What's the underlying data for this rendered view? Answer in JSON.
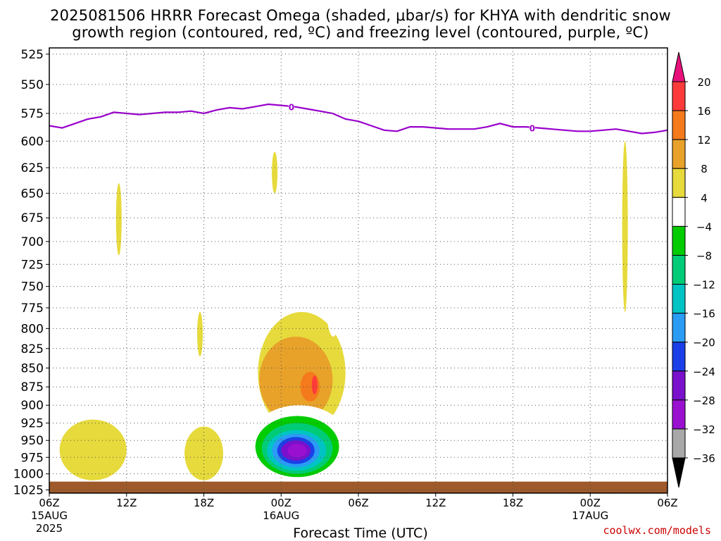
{
  "title": {
    "line1": "2025081506 HRRR Forecast Omega (shaded, μbar/s) for KHYA with dendritic snow",
    "line2": "growth region (contoured, red, ºC) and freezing level (contoured, purple, ºC)"
  },
  "credit": "coolwx.com/models",
  "chart_data": {
    "type": "contour",
    "xlabel": "Forecast Time (UTC)",
    "ylabel": "",
    "x_ticks": [
      "06Z",
      "12Z",
      "18Z",
      "00Z",
      "06Z",
      "12Z",
      "18Z",
      "00Z",
      "06Z"
    ],
    "x_subticks": [
      "15AUG",
      "",
      "",
      "16AUG",
      "",
      "",
      "",
      "17AUG",
      ""
    ],
    "x_year": "2025",
    "x_range_hours": [
      0,
      48
    ],
    "y_ticks": [
      525,
      550,
      575,
      600,
      625,
      650,
      675,
      700,
      725,
      750,
      775,
      800,
      825,
      850,
      875,
      900,
      925,
      950,
      975,
      1000,
      1025
    ],
    "y_range_hPa": [
      520,
      1030
    ],
    "y_scale": "log-pressure",
    "grid": true,
    "colorbar": {
      "labels": [
        "20",
        "16",
        "12",
        "8",
        "4",
        "−4",
        "−8",
        "−12",
        "−16",
        "−20",
        "−24",
        "−28",
        "−32",
        "−36"
      ],
      "bins": [
        {
          "from": 16,
          "to": 20,
          "color": "#ff3a3a"
        },
        {
          "from": 12,
          "to": 16,
          "color": "#f47a1c"
        },
        {
          "from": 8,
          "to": 12,
          "color": "#e8a22a"
        },
        {
          "from": 4,
          "to": 8,
          "color": "#e6da3c"
        },
        {
          "from": -4,
          "to": 4,
          "color": "#ffffff"
        },
        {
          "from": -8,
          "to": -4,
          "color": "#00cc00"
        },
        {
          "from": -12,
          "to": -8,
          "color": "#00cc77"
        },
        {
          "from": -16,
          "to": -12,
          "color": "#00c4c4"
        },
        {
          "from": -20,
          "to": -16,
          "color": "#2a9cf4"
        },
        {
          "from": -24,
          "to": -20,
          "color": "#1a3fe8"
        },
        {
          "from": -28,
          "to": -24,
          "color": "#7a10cc"
        },
        {
          "from": -32,
          "to": -28,
          "color": "#9a10d0"
        },
        {
          "from": -36,
          "to": -32,
          "color": "#a8a8a8"
        }
      ],
      "max_arrow_color": "#e8107a",
      "min_arrow_color": "#000000"
    },
    "series": [
      {
        "name": "freezing level",
        "contour_label": "0",
        "color": "#9900cc",
        "x": [
          0,
          1,
          2,
          3,
          4,
          5,
          6,
          7,
          8,
          9,
          10,
          11,
          12,
          13,
          14,
          15,
          16,
          17,
          18,
          19,
          20,
          21,
          22,
          23,
          24,
          25,
          26,
          27,
          28,
          29,
          30,
          31,
          32,
          33,
          34,
          35,
          36,
          37,
          38,
          39,
          40,
          41,
          42,
          43,
          44,
          45,
          46,
          47,
          48
        ],
        "y": [
          586,
          588,
          584,
          580,
          578,
          574,
          575,
          576,
          575,
          574,
          574,
          573,
          575,
          572,
          570,
          571,
          569,
          567,
          568,
          569,
          571,
          573,
          575,
          580,
          582,
          586,
          590,
          591,
          587,
          587,
          588,
          589,
          589,
          589,
          587,
          584,
          587,
          587,
          588,
          589,
          590,
          591,
          591,
          590,
          589,
          591,
          593,
          592,
          590
        ]
      }
    ],
    "omega_features": [
      {
        "value": 4,
        "x": [
          5.4,
          5.4
        ],
        "p": [
          640,
          715
        ]
      },
      {
        "value": 4,
        "x": [
          11.7,
          11.7
        ],
        "p": [
          780,
          835
        ]
      },
      {
        "value": 4,
        "x": [
          17.5,
          17.5
        ],
        "p": [
          610,
          650
        ]
      },
      {
        "value": 4,
        "x": [
          44.7,
          44.7
        ],
        "p": [
          600,
          780
        ]
      },
      {
        "value": 4,
        "x": [
          0.8,
          6
        ],
        "p": [
          920,
          1010
        ]
      },
      {
        "value": 4,
        "x": [
          10.5,
          13.5
        ],
        "p": [
          930,
          1010
        ]
      },
      {
        "value": 4,
        "x": [
          16.2,
          23
        ],
        "p": [
          780,
          940
        ]
      },
      {
        "value": 8,
        "x": [
          16.3,
          22
        ],
        "p": [
          810,
          925
        ]
      },
      {
        "value": 12,
        "x": [
          19.5,
          21
        ],
        "p": [
          855,
          895
        ]
      },
      {
        "value": 16,
        "x": [
          20.4,
          20.8
        ],
        "p": [
          860,
          885
        ]
      },
      {
        "value": -4,
        "x": [
          21.5,
          22.6
        ],
        "p": [
          730,
          810
        ]
      },
      {
        "value": -4,
        "x": [
          22,
          23.3
        ],
        "p": [
          960,
          1010
        ]
      },
      {
        "value": -4,
        "x": [
          36.2,
          48
        ],
        "p": [
          790,
          1010
        ]
      },
      {
        "value": -4,
        "x": [
          15.5,
          23.3
        ],
        "p": [
          900,
          1010
        ]
      },
      {
        "value": -8,
        "x": [
          16,
          22.5
        ],
        "p": [
          915,
          1005
        ]
      },
      {
        "value": -12,
        "x": [
          16.5,
          22
        ],
        "p": [
          925,
          1000
        ]
      },
      {
        "value": -16,
        "x": [
          16.9,
          21.5
        ],
        "p": [
          935,
          995
        ]
      },
      {
        "value": -20,
        "x": [
          17.3,
          21
        ],
        "p": [
          940,
          990
        ]
      },
      {
        "value": -24,
        "x": [
          17.7,
          20.6
        ],
        "p": [
          945,
          985
        ]
      },
      {
        "value": -28,
        "x": [
          18,
          20.3
        ],
        "p": [
          950,
          980
        ]
      },
      {
        "value": -32,
        "x": [
          18.5,
          20
        ],
        "p": [
          955,
          975
        ]
      }
    ],
    "terrain": {
      "color": "#9e5a2a"
    }
  }
}
